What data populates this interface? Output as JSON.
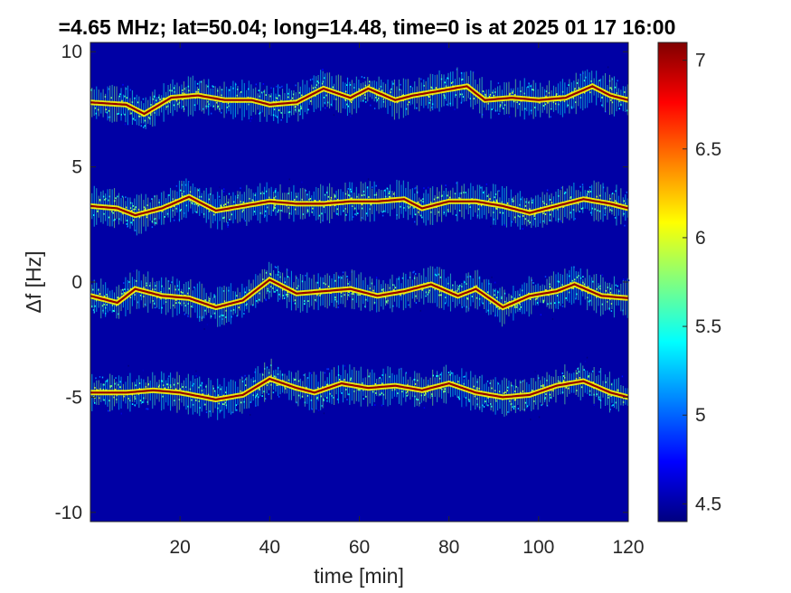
{
  "chart_data": {
    "type": "heatmap",
    "title": "=4.65 MHz;  lat=50.04; long=14.48, time=0 is at 2025 01 17 16:00",
    "xlabel": "time [min]",
    "ylabel": "Δf [Hz]",
    "xlim": [
      0,
      120
    ],
    "ylim": [
      -10.4,
      10.4
    ],
    "x_ticks": [
      20,
      40,
      60,
      80,
      100,
      120
    ],
    "x_tick_labels": [
      "20",
      "40",
      "60",
      "80",
      "100",
      "120"
    ],
    "y_ticks": [
      10,
      5,
      0,
      -5,
      -10
    ],
    "y_tick_labels": [
      "10",
      "5",
      "0",
      "-5",
      "-10"
    ],
    "colorbar": {
      "colormap": "jet",
      "clim": [
        4.4,
        7.1
      ],
      "ticks": [
        4.5,
        5,
        5.5,
        6,
        6.5,
        7
      ],
      "tick_labels": [
        "4.5",
        "5",
        "5.5",
        "6",
        "6.5",
        "7"
      ]
    },
    "background_level": 4.5,
    "series": [
      {
        "center_offset": [
          [
            0,
            7.8
          ],
          [
            8,
            7.7
          ],
          [
            12,
            7.3
          ],
          [
            18,
            8.0
          ],
          [
            24,
            8.1
          ],
          [
            30,
            7.9
          ],
          [
            36,
            7.9
          ],
          [
            40,
            7.7
          ],
          [
            46,
            7.8
          ],
          [
            52,
            8.4
          ],
          [
            58,
            8.0
          ],
          [
            62,
            8.4
          ],
          [
            68,
            7.9
          ],
          [
            72,
            8.1
          ],
          [
            78,
            8.3
          ],
          [
            84,
            8.5
          ],
          [
            88,
            7.9
          ],
          [
            94,
            8.0
          ],
          [
            100,
            7.9
          ],
          [
            106,
            8.0
          ],
          [
            112,
            8.5
          ],
          [
            116,
            8.1
          ],
          [
            120,
            7.9
          ]
        ]
      },
      {
        "center_offset": [
          [
            0,
            3.3
          ],
          [
            6,
            3.2
          ],
          [
            10,
            2.9
          ],
          [
            16,
            3.2
          ],
          [
            22,
            3.7
          ],
          [
            28,
            3.1
          ],
          [
            34,
            3.3
          ],
          [
            40,
            3.5
          ],
          [
            46,
            3.4
          ],
          [
            52,
            3.4
          ],
          [
            58,
            3.5
          ],
          [
            64,
            3.5
          ],
          [
            70,
            3.6
          ],
          [
            74,
            3.2
          ],
          [
            80,
            3.5
          ],
          [
            86,
            3.5
          ],
          [
            92,
            3.3
          ],
          [
            98,
            3.0
          ],
          [
            104,
            3.3
          ],
          [
            110,
            3.6
          ],
          [
            116,
            3.4
          ],
          [
            120,
            3.2
          ]
        ]
      },
      {
        "center_offset": [
          [
            0,
            -0.6
          ],
          [
            6,
            -0.9
          ],
          [
            10,
            -0.3
          ],
          [
            16,
            -0.6
          ],
          [
            22,
            -0.7
          ],
          [
            28,
            -1.1
          ],
          [
            34,
            -0.8
          ],
          [
            40,
            0.1
          ],
          [
            46,
            -0.5
          ],
          [
            52,
            -0.4
          ],
          [
            58,
            -0.3
          ],
          [
            64,
            -0.6
          ],
          [
            70,
            -0.4
          ],
          [
            76,
            -0.1
          ],
          [
            82,
            -0.6
          ],
          [
            86,
            -0.3
          ],
          [
            92,
            -1.1
          ],
          [
            98,
            -0.6
          ],
          [
            104,
            -0.4
          ],
          [
            108,
            -0.1
          ],
          [
            114,
            -0.6
          ],
          [
            120,
            -0.7
          ]
        ]
      },
      {
        "center_offset": [
          [
            0,
            -4.8
          ],
          [
            8,
            -4.8
          ],
          [
            14,
            -4.7
          ],
          [
            20,
            -4.8
          ],
          [
            28,
            -5.1
          ],
          [
            34,
            -4.9
          ],
          [
            40,
            -4.2
          ],
          [
            46,
            -4.6
          ],
          [
            50,
            -4.8
          ],
          [
            56,
            -4.4
          ],
          [
            62,
            -4.6
          ],
          [
            68,
            -4.5
          ],
          [
            74,
            -4.7
          ],
          [
            80,
            -4.4
          ],
          [
            86,
            -4.8
          ],
          [
            92,
            -5.0
          ],
          [
            98,
            -4.9
          ],
          [
            104,
            -4.5
          ],
          [
            110,
            -4.3
          ],
          [
            116,
            -4.8
          ],
          [
            120,
            -5.0
          ]
        ]
      }
    ]
  }
}
